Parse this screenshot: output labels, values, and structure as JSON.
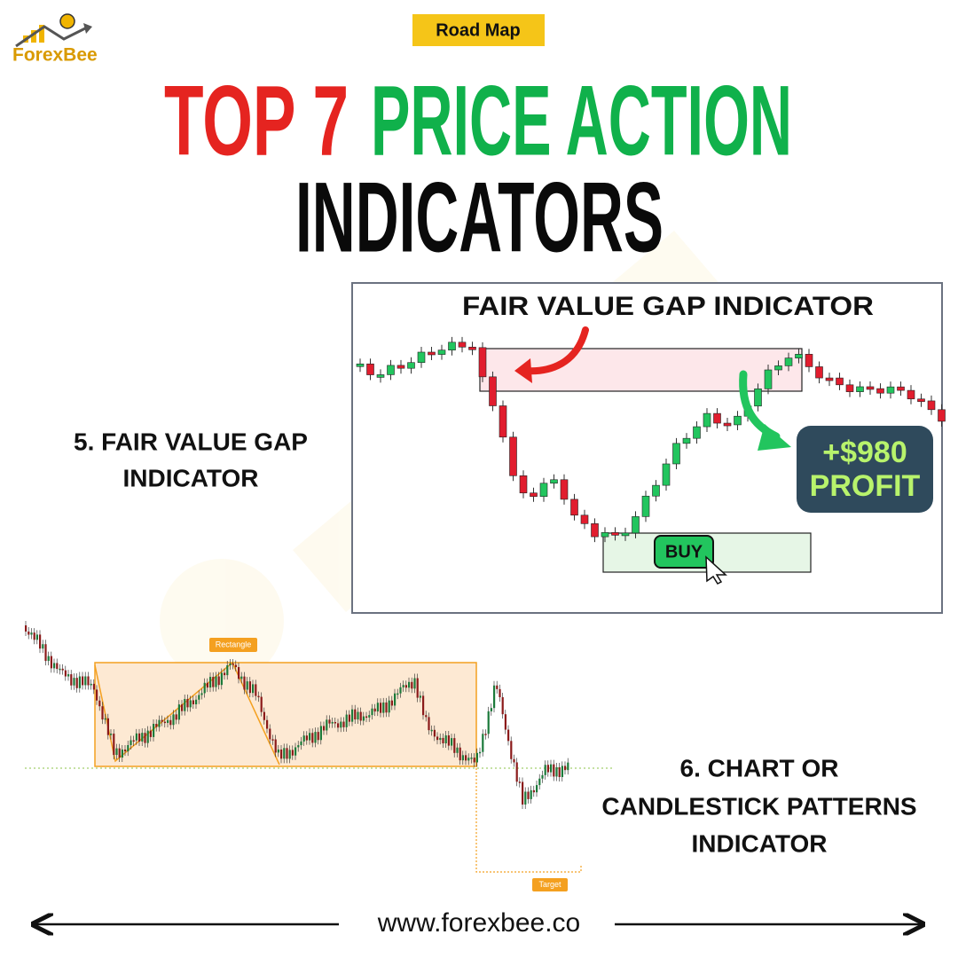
{
  "header": {
    "logo": "ForexBee",
    "badge": "Road Map",
    "title_part1": "TOP 7",
    "title_part2": "PRICE ACTION",
    "title_line2": "INDICATORS"
  },
  "sections": [
    {
      "label_lines": [
        "5. FAIR VALUE GAP",
        "INDICATOR"
      ],
      "image": {
        "title": "FAIR VALUE GAP INDICATOR",
        "profit_amount": "+$980",
        "profit_label": "PROFIT",
        "button": "BUY"
      }
    },
    {
      "label_lines": [
        "6. CHART OR",
        "CANDLESTICK PATTERNS",
        "INDICATOR"
      ],
      "image": {
        "pattern_label": "Rectangle",
        "target_label": "Target"
      }
    }
  ],
  "footer": {
    "website": "www.forexbee.co"
  }
}
